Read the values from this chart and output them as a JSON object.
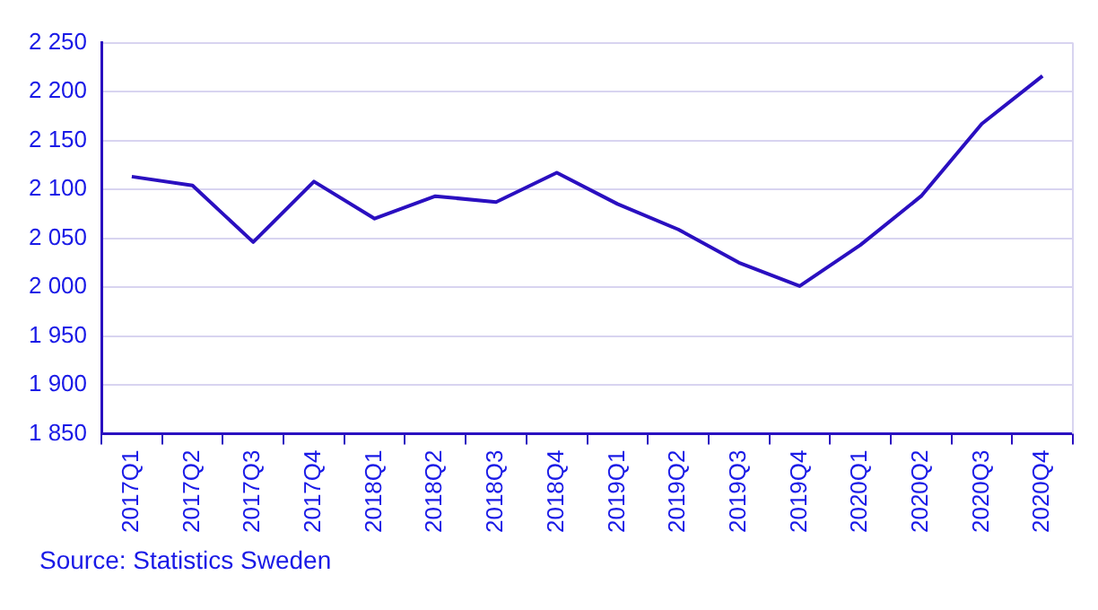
{
  "chart_data": {
    "type": "line",
    "categories": [
      "2017Q1",
      "2017Q2",
      "2017Q3",
      "2017Q4",
      "2018Q1",
      "2018Q2",
      "2018Q3",
      "2018Q4",
      "2019Q1",
      "2019Q2",
      "2019Q3",
      "2019Q4",
      "2020Q1",
      "2020Q2",
      "2020Q3",
      "2020Q4"
    ],
    "series": [
      {
        "color": "#2a0fc0",
        "values": [
          2113,
          2104,
          2046,
          2108,
          2070,
          2093,
          2087,
          2117,
          2085,
          2059,
          2025,
          2001,
          2043,
          2093,
          2167,
          2216
        ]
      }
    ],
    "ylim": [
      1850,
      2250
    ],
    "yticks": [
      {
        "value": 1850,
        "label": "1 850"
      },
      {
        "value": 1900,
        "label": "1 900"
      },
      {
        "value": 1950,
        "label": "1 950"
      },
      {
        "value": 2000,
        "label": "2 000"
      },
      {
        "value": 2050,
        "label": "2 050"
      },
      {
        "value": 2100,
        "label": "2 100"
      },
      {
        "value": 2150,
        "label": "2 150"
      },
      {
        "value": 2200,
        "label": "2 200"
      },
      {
        "value": 2250,
        "label": "2 250"
      }
    ],
    "grid": "y",
    "marker": "none",
    "line_style": "solid",
    "legend": false,
    "annotations": [
      "Source: Statistics Sweden"
    ]
  }
}
